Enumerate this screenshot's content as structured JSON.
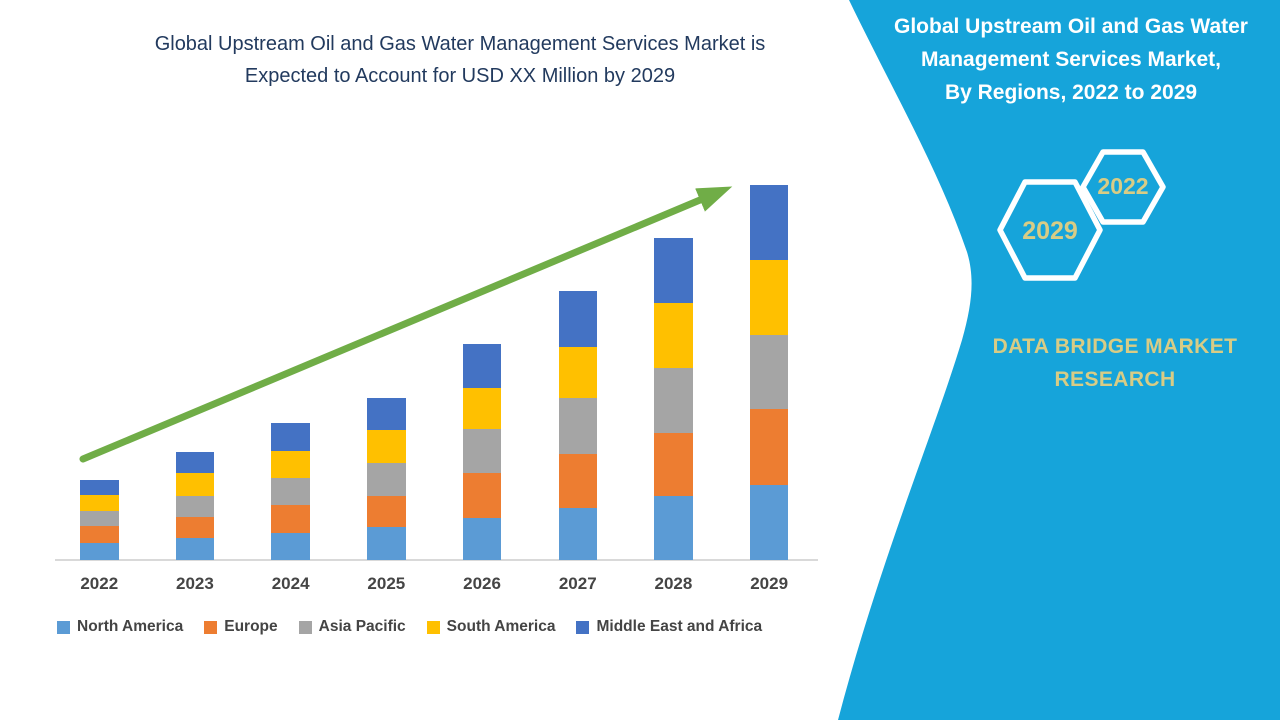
{
  "left": {
    "title": "Global Upstream Oil and Gas Water Management Services Market is\nExpected to Account for USD XX Million by 2029"
  },
  "right": {
    "title": "Global Upstream Oil and Gas Water\nManagement Services Market,\nBy Regions, 2022 to 2029",
    "hexagons": [
      {
        "label": "2022"
      },
      {
        "label": "2029"
      }
    ],
    "brand": "DATA BRIDGE MARKET\nRESEARCH"
  },
  "colors": {
    "panel_cyan": "#16A4DA",
    "title_navy": "#223A5E",
    "accent_khaki": "#D8CC85",
    "arrow_green": "#70AD47",
    "axis_gray": "#D9D9D9",
    "label_gray": "#454545",
    "white": "#FFFFFF"
  },
  "chart_data": {
    "type": "bar",
    "stacked": true,
    "title": "Global Upstream Oil and Gas Water Management Services Market is Expected to Account for USD XX Million by 2029",
    "xlabel": "",
    "ylabel": "",
    "value_axis_visible": false,
    "value_unit": "USD XX Million (values not labeled)",
    "legend_position": "bottom",
    "trend_arrow": true,
    "categories": [
      "2022",
      "2023",
      "2024",
      "2025",
      "2026",
      "2027",
      "2028",
      "2029"
    ],
    "series": [
      {
        "name": "North America",
        "color": "#5B9BD5",
        "values": [
          17,
          22,
          27,
          33,
          42,
          52,
          64,
          75
        ]
      },
      {
        "name": "Europe",
        "color": "#ED7D31",
        "values": [
          17,
          21,
          28,
          31,
          45,
          54,
          63,
          76
        ]
      },
      {
        "name": "Asia Pacific",
        "color": "#A5A5A5",
        "values": [
          15,
          21,
          27,
          33,
          44,
          56,
          65,
          74
        ]
      },
      {
        "name": "South America",
        "color": "#FFC000",
        "values": [
          16,
          23,
          27,
          33,
          41,
          51,
          65,
          75
        ]
      },
      {
        "name": "Middle East and Africa",
        "color": "#4472C4",
        "values": [
          15,
          21,
          28,
          32,
          44,
          56,
          65,
          75
        ]
      }
    ],
    "stack_totals": [
      80,
      108,
      137,
      162,
      216,
      269,
      322,
      375
    ]
  }
}
